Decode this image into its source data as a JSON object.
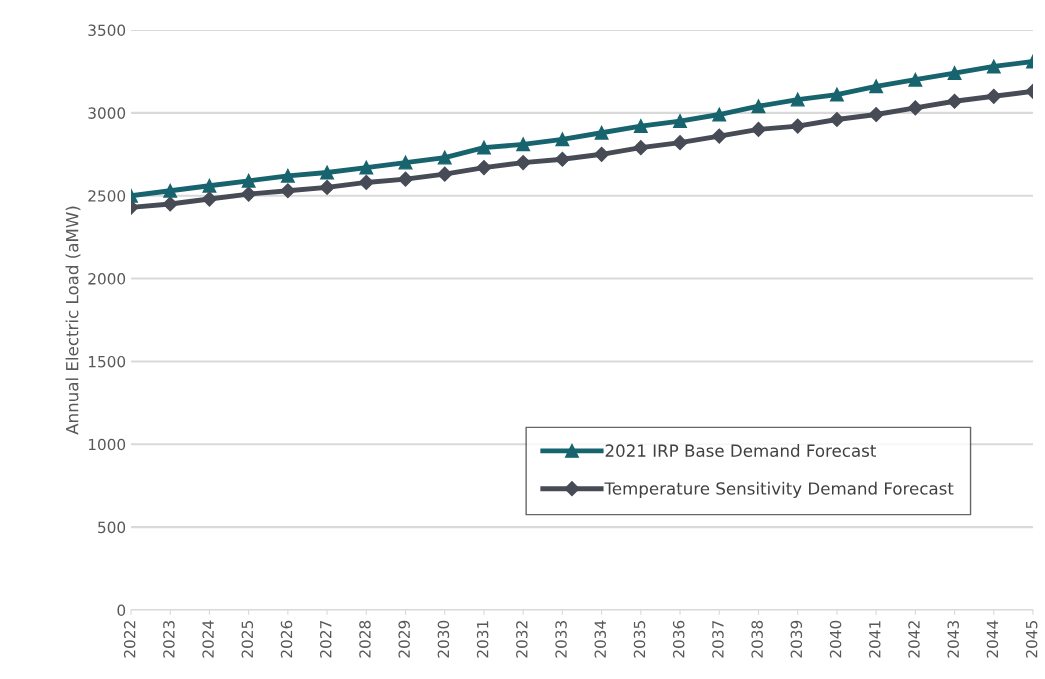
{
  "chart_data": {
    "type": "line",
    "ylabel": "Annual Electric Load (aMW)",
    "categories": [
      "2022",
      "2023",
      "2024",
      "2025",
      "2026",
      "2027",
      "2028",
      "2029",
      "2030",
      "2031",
      "2032",
      "2033",
      "2034",
      "2035",
      "2036",
      "2037",
      "2038",
      "2039",
      "2040",
      "2041",
      "2042",
      "2043",
      "2044",
      "2045"
    ],
    "series": [
      {
        "name": "2021 IRP Base Demand Forecast",
        "color": "#17646e",
        "marker": "triangle",
        "values": [
          2500,
          2530,
          2560,
          2590,
          2620,
          2640,
          2670,
          2700,
          2730,
          2790,
          2810,
          2840,
          2880,
          2920,
          2950,
          2990,
          3040,
          3080,
          3110,
          3160,
          3200,
          3240,
          3280,
          3310
        ]
      },
      {
        "name": "Temperature Sensitivity Demand Forecast",
        "color": "#474b55",
        "marker": "diamond",
        "values": [
          2430,
          2450,
          2480,
          2510,
          2530,
          2550,
          2580,
          2600,
          2630,
          2670,
          2700,
          2720,
          2750,
          2790,
          2820,
          2860,
          2900,
          2920,
          2960,
          2990,
          3030,
          3070,
          3100,
          3130
        ]
      }
    ],
    "ylim": [
      0,
      3500
    ],
    "yticks": [
      0,
      500,
      1000,
      1500,
      2000,
      2500,
      3000,
      3500
    ],
    "grid": "y",
    "legend": "bottom right",
    "line_style": "solid"
  }
}
